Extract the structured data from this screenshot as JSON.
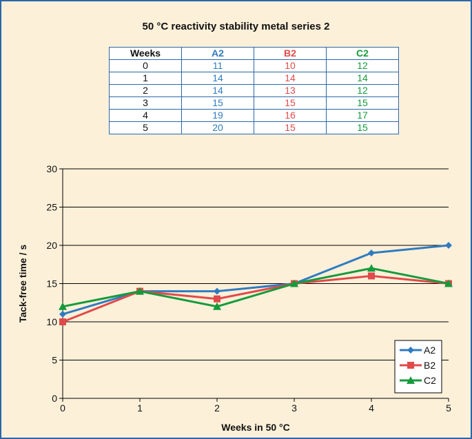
{
  "chart_data": {
    "type": "line",
    "title": "50 °C reactivity stability metal series 2",
    "xlabel": "Weeks in 50 °C",
    "ylabel": "Tack-free time / s",
    "x": [
      0,
      1,
      2,
      3,
      4,
      5
    ],
    "ylim": [
      0,
      30
    ],
    "yticks": [
      0,
      5,
      10,
      15,
      20,
      25,
      30
    ],
    "grid": "horizontal",
    "legend": "bottom-right",
    "series": [
      {
        "name": "A2",
        "values": [
          11,
          14,
          14,
          15,
          19,
          20
        ],
        "color": "#2f7bc1",
        "marker": "diamond"
      },
      {
        "name": "B2",
        "values": [
          10,
          14,
          13,
          15,
          16,
          15
        ],
        "color": "#e04a4a",
        "marker": "square"
      },
      {
        "name": "C2",
        "values": [
          12,
          14,
          12,
          15,
          17,
          15
        ],
        "color": "#169a3c",
        "marker": "triangle"
      }
    ],
    "table": {
      "headers": [
        "Weeks",
        "A2",
        "B2",
        "C2"
      ],
      "header_colors": [
        "#111111",
        "#2f7bc1",
        "#e04a4a",
        "#169a3c"
      ]
    }
  }
}
